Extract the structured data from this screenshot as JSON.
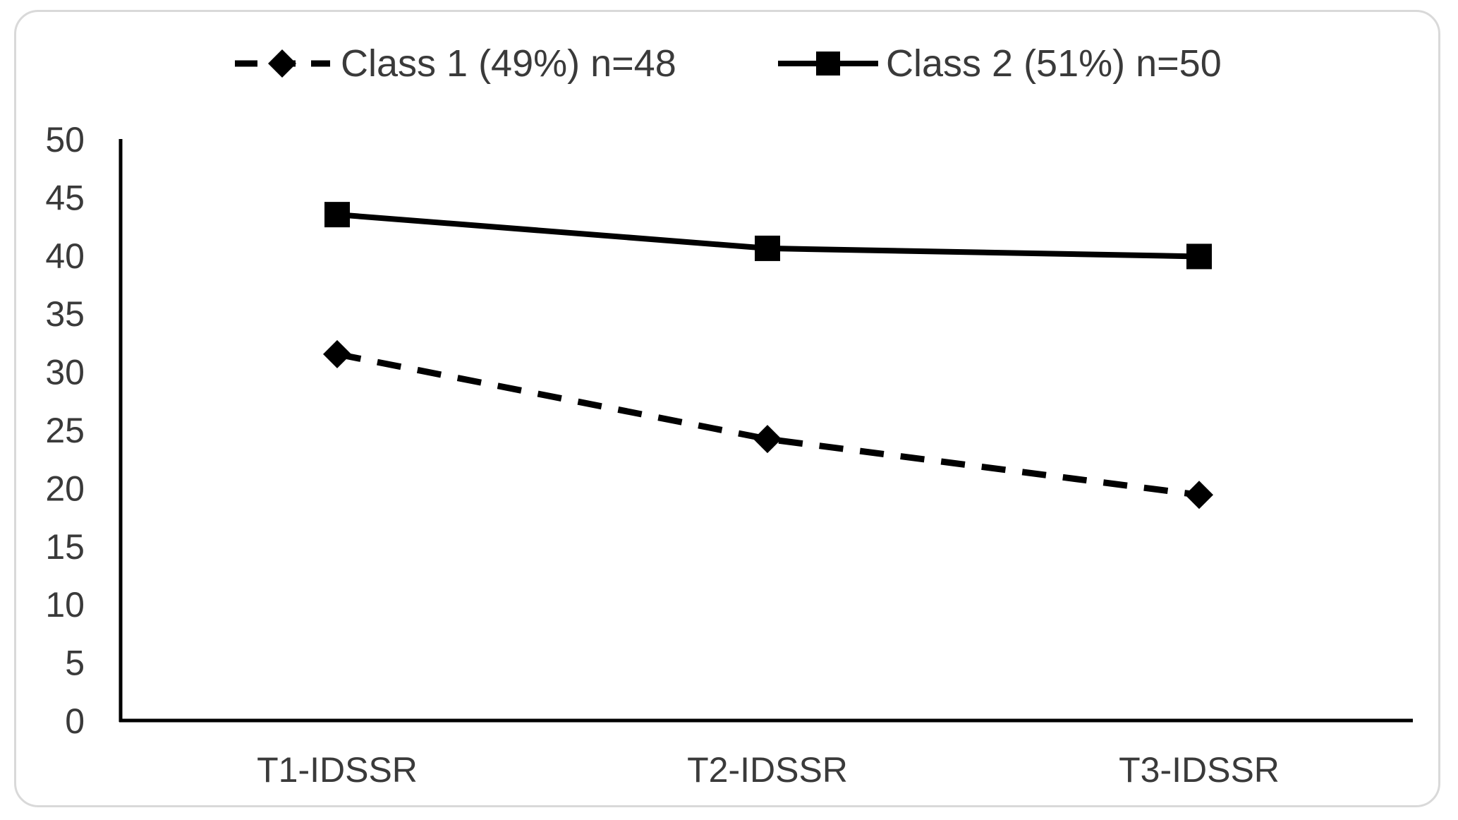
{
  "chart_data": {
    "type": "line",
    "title": "",
    "xlabel": "",
    "ylabel": "",
    "categories": [
      "T1-IDSSR",
      "T2-IDSSR",
      "T3-IDSSR"
    ],
    "ylim": [
      0,
      50
    ],
    "yticks": [
      "0",
      "5",
      "10",
      "15",
      "20",
      "25",
      "30",
      "35",
      "40",
      "45",
      "50"
    ],
    "grid": false,
    "legend_position": "top",
    "series": [
      {
        "name": "Class 1 (49%) n=48",
        "values": [
          31.5,
          24.2,
          19.4
        ],
        "line_style": "dashed",
        "marker": "diamond",
        "color": "#000000"
      },
      {
        "name": "Class 2 (51%) n=50",
        "values": [
          43.5,
          40.6,
          39.9
        ],
        "line_style": "solid",
        "marker": "square",
        "color": "#000000"
      }
    ]
  }
}
